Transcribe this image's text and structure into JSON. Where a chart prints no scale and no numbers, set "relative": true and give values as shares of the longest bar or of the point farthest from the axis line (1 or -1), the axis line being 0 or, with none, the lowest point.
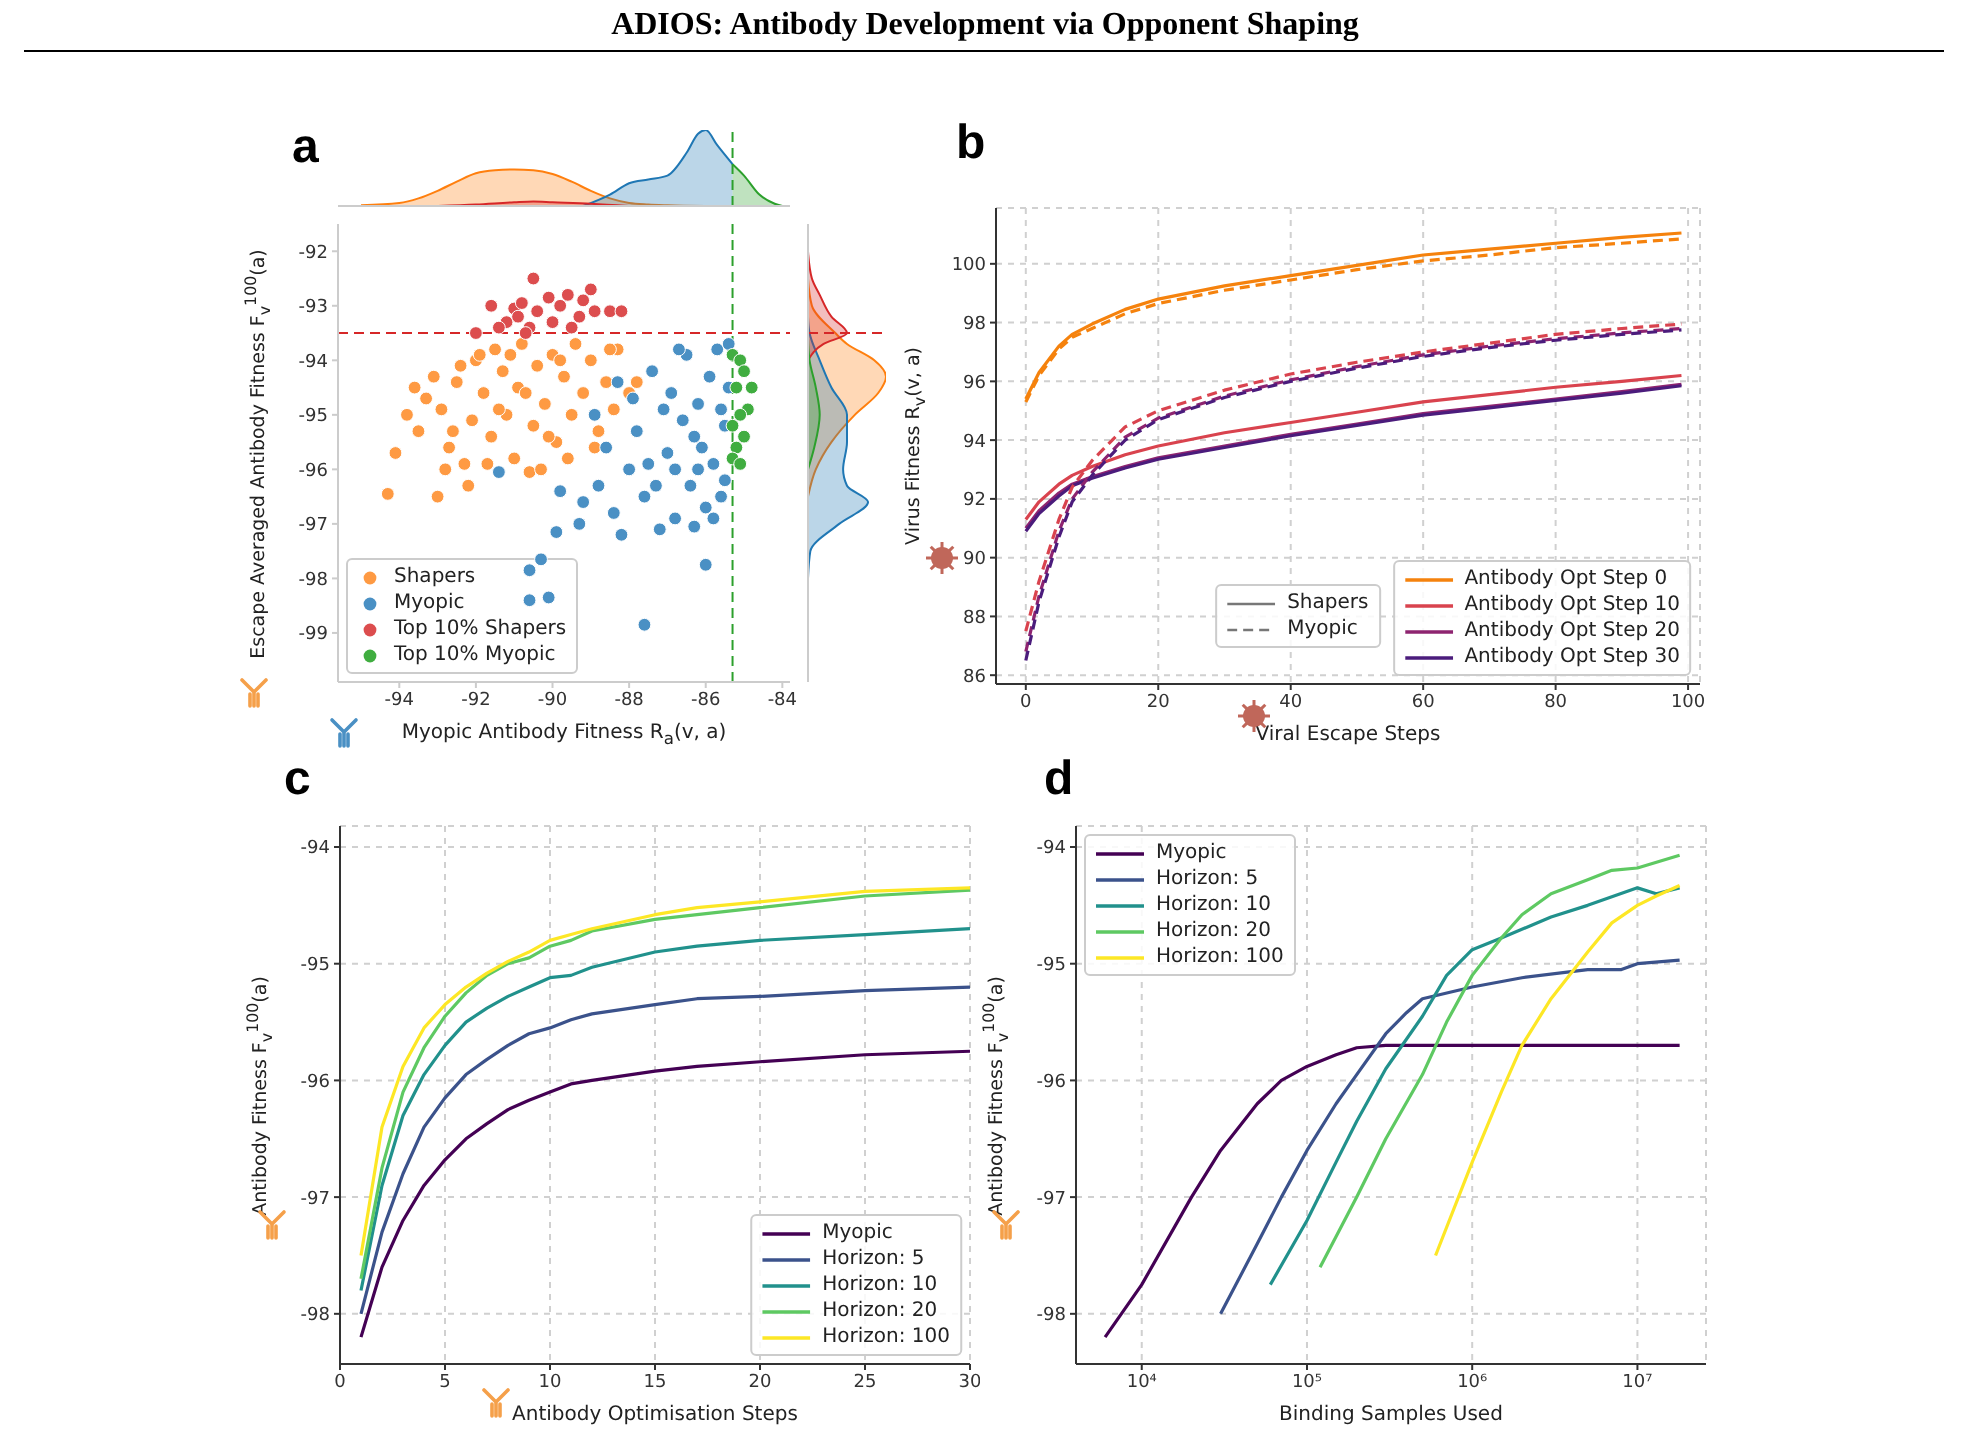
{
  "chart_data": [
    {
      "type": "scatter",
      "title": "a",
      "annotations": [
        "ADIOS: Antibody Development via Opponent Shaping"
      ],
      "xlabel": "Myopic Antibody Fitness R$_{a}$(v, a)",
      "ylabel": "Escape Averaged Antibody Fitness F$_{v}$$^{100}$(a)",
      "xlim": [
        -95.6,
        -83.8
      ],
      "xticks": [
        -94,
        -92,
        -90,
        -88,
        -86,
        -84
      ],
      "ylim": [
        -99.9,
        -91.5
      ],
      "yticks": [
        -99,
        -98,
        -97,
        -96,
        -95,
        -94,
        -93,
        -92
      ],
      "marker": "circle",
      "legend": "bottom left",
      "ref_lines": [
        {
          "axis": "y",
          "value": -93.5,
          "color": "#d62728",
          "line_style": "dashed"
        },
        {
          "axis": "x",
          "value": -85.3,
          "color": "#2ca02c",
          "line_style": "dashed"
        }
      ],
      "series": [
        {
          "name": "Shapers",
          "color": "#fe9a43",
          "x": [
            -94.3,
            -93.0,
            -92.2,
            -94.1,
            -93.8,
            -93.5,
            -93.1,
            -92.9,
            -92.7,
            -92.5,
            -92.3,
            -92.1,
            -92.0,
            -91.8,
            -91.6,
            -91.5,
            -91.3,
            -91.2,
            -91.0,
            -90.9,
            -90.8,
            -90.6,
            -90.5,
            -90.4,
            -90.2,
            -90.0,
            -89.9,
            -89.7,
            -89.5,
            -89.4,
            -89.2,
            -89.0,
            -88.8,
            -88.6,
            -88.4,
            -88.3,
            -88.0,
            -87.8,
            -88.5,
            -91.9,
            -92.6,
            -93.3,
            -91.4,
            -90.7,
            -89.8,
            -91.1,
            -92.4,
            -90.1,
            -92.8,
            -91.7,
            -89.6,
            -90.3,
            -93.6,
            -88.9
          ],
          "values": [
            -96.45,
            -96.5,
            -96.3,
            -95.7,
            -95.0,
            -95.3,
            -94.3,
            -94.9,
            -95.6,
            -94.4,
            -95.9,
            -95.1,
            -94.0,
            -94.6,
            -95.4,
            -93.8,
            -94.2,
            -95.0,
            -95.8,
            -94.5,
            -93.7,
            -96.05,
            -95.2,
            -94.1,
            -94.8,
            -93.9,
            -95.5,
            -94.3,
            -95.0,
            -93.7,
            -94.6,
            -94.0,
            -95.3,
            -94.4,
            -94.9,
            -93.8,
            -94.6,
            -94.4,
            -93.8,
            -93.9,
            -95.3,
            -94.7,
            -94.9,
            -94.6,
            -94.0,
            -93.9,
            -94.1,
            -95.4,
            -96.0,
            -95.9,
            -95.8,
            -96.0,
            -94.5,
            -95.6
          ]
        },
        {
          "name": "Myopic",
          "color": "#4a90c4",
          "x": [
            -87.6,
            -90.1,
            -90.6,
            -90.6,
            -90.3,
            -89.9,
            -89.3,
            -86.0,
            -91.4,
            -88.2,
            -89.8,
            -89.2,
            -88.8,
            -88.4,
            -88.0,
            -87.8,
            -87.6,
            -87.4,
            -87.2,
            -87.0,
            -86.9,
            -86.8,
            -86.6,
            -86.5,
            -86.4,
            -86.3,
            -86.2,
            -86.1,
            -86.0,
            -85.9,
            -85.8,
            -85.7,
            -85.6,
            -85.5,
            -85.4,
            -85.4,
            -87.5,
            -87.1,
            -86.7,
            -88.6,
            -87.9,
            -86.3,
            -85.6,
            -88.9,
            -86.8,
            -85.8,
            -87.3,
            -86.2,
            -85.5,
            -88.3
          ],
          "values": [
            -98.85,
            -98.35,
            -98.4,
            -97.85,
            -97.65,
            -97.15,
            -97.0,
            -97.75,
            -96.05,
            -97.2,
            -96.4,
            -96.6,
            -96.3,
            -96.8,
            -96.0,
            -95.3,
            -96.5,
            -94.2,
            -97.1,
            -95.7,
            -94.6,
            -96.9,
            -95.1,
            -93.9,
            -96.3,
            -97.05,
            -94.8,
            -95.6,
            -96.7,
            -94.3,
            -95.9,
            -93.8,
            -96.5,
            -95.2,
            -94.5,
            -93.7,
            -95.9,
            -94.9,
            -93.8,
            -95.6,
            -94.7,
            -95.4,
            -94.9,
            -95.0,
            -96.0,
            -96.9,
            -96.3,
            -96.0,
            -96.2,
            -94.4
          ]
        },
        {
          "name": "Top 10% Shapers",
          "color": "#dc4d4e",
          "x": [
            -92.0,
            -91.6,
            -91.2,
            -91.0,
            -90.9,
            -90.8,
            -90.6,
            -90.5,
            -90.4,
            -90.1,
            -90.0,
            -89.8,
            -89.6,
            -89.5,
            -89.3,
            -89.2,
            -89.0,
            -88.9,
            -88.5,
            -88.2,
            -90.7,
            -91.4
          ],
          "values": [
            -93.5,
            -93.0,
            -93.3,
            -93.05,
            -93.2,
            -92.95,
            -93.4,
            -92.5,
            -93.1,
            -92.85,
            -93.3,
            -93.0,
            -92.8,
            -93.4,
            -93.2,
            -92.9,
            -92.7,
            -93.1,
            -93.1,
            -93.1,
            -93.5,
            -93.4
          ]
        },
        {
          "name": "Top 10% Myopic",
          "color": "#40ad40",
          "x": [
            -85.3,
            -85.1,
            -85.0,
            -84.8,
            -85.2,
            -84.9,
            -85.1,
            -85.3,
            -85.0,
            -85.2,
            -85.3,
            -85.1
          ],
          "values": [
            -93.9,
            -94.0,
            -94.2,
            -94.5,
            -94.5,
            -94.9,
            -95.0,
            -95.2,
            -95.4,
            -95.6,
            -95.8,
            -95.9
          ]
        }
      ]
    },
    {
      "type": "area",
      "relative": true,
      "tick_labels": false,
      "xlim": [
        -95.6,
        -83.8
      ],
      "ref_lines": [
        {
          "axis": "x",
          "value": -85.3,
          "color": "#2ca02c",
          "line_style": "dashed"
        }
      ],
      "series": [
        {
          "color": "#ff7f0e",
          "x": [
            -95,
            -94,
            -93.5,
            -93,
            -92.5,
            -92,
            -91.5,
            -91,
            -90.5,
            -90,
            -89.5,
            -89,
            -88.5,
            -88,
            -87.5,
            -87,
            -86
          ],
          "values": [
            0.01,
            0.04,
            0.1,
            0.2,
            0.32,
            0.43,
            0.47,
            0.48,
            0.47,
            0.42,
            0.32,
            0.2,
            0.1,
            0.04,
            0.02,
            0.01,
            0
          ]
        },
        {
          "color": "#1f77b4",
          "x": [
            -89.2,
            -88.5,
            -88,
            -87.5,
            -87,
            -86.5,
            -86.2,
            -86,
            -85.7,
            -85.3
          ],
          "values": [
            0,
            0.15,
            0.3,
            0.35,
            0.4,
            0.7,
            0.95,
            1,
            0.8,
            0.55
          ]
        },
        {
          "color": "#d62728",
          "x": [
            -93,
            -92,
            -91,
            -90.5,
            -90,
            -89,
            -88
          ],
          "values": [
            0,
            0.02,
            0.05,
            0.06,
            0.05,
            0.03,
            0
          ]
        },
        {
          "color": "#2ca02c",
          "x": [
            -85.3,
            -85,
            -84.6,
            -84.2,
            -84
          ],
          "values": [
            0.55,
            0.4,
            0.15,
            0.03,
            0
          ]
        }
      ]
    },
    {
      "type": "area",
      "relative": true,
      "orientation": "horizontal",
      "tick_labels": false,
      "ylim": [
        -99.9,
        -91.5
      ],
      "ref_lines": [
        {
          "axis": "y",
          "value": -93.5,
          "color": "#d62728",
          "line_style": "dashed"
        }
      ],
      "series": [
        {
          "color": "#ff7f0e",
          "x": [
            -96.5,
            -96,
            -95.5,
            -95,
            -94.6,
            -94.3,
            -94,
            -93.7,
            -93.5,
            -93,
            -92.5
          ],
          "values": [
            0,
            0.1,
            0.3,
            0.6,
            0.9,
            1,
            0.85,
            0.5,
            0.35,
            0.05,
            0
          ]
        },
        {
          "color": "#1f77b4",
          "x": [
            -98,
            -97.5,
            -97,
            -96.6,
            -96.3,
            -96,
            -95.5,
            -95,
            -94.5,
            -94,
            -93.5,
            -93.2
          ],
          "values": [
            0,
            0.03,
            0.4,
            0.77,
            0.5,
            0.45,
            0.5,
            0.5,
            0.3,
            0.15,
            0.02,
            0
          ]
        },
        {
          "color": "#d62728",
          "x": [
            -94,
            -93.7,
            -93.5,
            -93.2,
            -92.8,
            -92.5,
            -92
          ],
          "values": [
            0,
            0.2,
            0.5,
            0.3,
            0.15,
            0.05,
            0
          ]
        },
        {
          "color": "#2ca02c",
          "x": [
            -96,
            -95.6,
            -95,
            -94.5,
            -94,
            -93.6
          ],
          "values": [
            0,
            0.08,
            0.15,
            0.1,
            0.02,
            0
          ]
        }
      ]
    },
    {
      "type": "line",
      "title": "b",
      "xlabel": "Viral Escape Steps",
      "ylabel": "Virus Fitness R$_{v}$(v, a)",
      "xlim": [
        -4.5,
        101.8
      ],
      "xticks": [
        0,
        20,
        40,
        60,
        80,
        100
      ],
      "ylim": [
        85.7,
        101.9
      ],
      "yticks": [
        86,
        88,
        90,
        92,
        94,
        96,
        98,
        100
      ],
      "grid": true,
      "legend": "bottom right",
      "annotations": [
        "Shapers",
        "Myopic"
      ],
      "x": [
        0,
        2,
        5,
        7,
        10,
        15,
        20,
        30,
        40,
        50,
        60,
        70,
        80,
        90,
        99
      ],
      "series": [
        {
          "name": "Antibody Opt Step 0",
          "color": "#f5820d",
          "line_style": "solid",
          "values": [
            95.4,
            96.3,
            97.2,
            97.6,
            97.95,
            98.45,
            98.8,
            99.25,
            99.6,
            99.95,
            100.3,
            100.5,
            100.7,
            100.9,
            101.05
          ]
        },
        {
          "name": "Antibody Opt Step 10",
          "color": "#d9434e",
          "line_style": "solid",
          "values": [
            91.3,
            91.9,
            92.5,
            92.8,
            93.1,
            93.5,
            93.8,
            94.25,
            94.6,
            94.95,
            95.3,
            95.55,
            95.8,
            96.0,
            96.2
          ]
        },
        {
          "name": "Antibody Opt Step 20",
          "color": "#8e2470",
          "line_style": "solid",
          "values": [
            91.0,
            91.6,
            92.2,
            92.5,
            92.75,
            93.1,
            93.4,
            93.8,
            94.2,
            94.55,
            94.9,
            95.15,
            95.4,
            95.65,
            95.9
          ]
        },
        {
          "name": "Antibody Opt Step 30",
          "color": "#4b1c7c",
          "line_style": "solid",
          "values": [
            90.9,
            91.5,
            92.1,
            92.45,
            92.7,
            93.05,
            93.35,
            93.75,
            94.15,
            94.5,
            94.85,
            95.1,
            95.35,
            95.6,
            95.85
          ]
        },
        {
          "color": "#f5820d",
          "line_style": "dashed",
          "values": [
            95.3,
            96.2,
            97.1,
            97.5,
            97.8,
            98.3,
            98.65,
            99.1,
            99.45,
            99.8,
            100.1,
            100.3,
            100.55,
            100.7,
            100.85
          ]
        },
        {
          "color": "#d9434e",
          "line_style": "dashed",
          "values": [
            87.5,
            89.2,
            91.3,
            92.4,
            93.3,
            94.45,
            95.0,
            95.7,
            96.25,
            96.65,
            97.0,
            97.3,
            97.6,
            97.8,
            97.95
          ]
        },
        {
          "color": "#8e2470",
          "line_style": "dashed",
          "values": [
            86.8,
            88.7,
            90.9,
            92.0,
            92.9,
            94.1,
            94.75,
            95.5,
            96.05,
            96.5,
            96.9,
            97.2,
            97.45,
            97.65,
            97.8
          ]
        },
        {
          "color": "#4b1c7c",
          "line_style": "dashed",
          "values": [
            86.5,
            88.5,
            90.7,
            91.9,
            92.8,
            94.0,
            94.7,
            95.45,
            96.0,
            96.45,
            96.85,
            97.15,
            97.4,
            97.6,
            97.75
          ]
        }
      ]
    },
    {
      "type": "line",
      "title": "c",
      "xlabel": "Antibody Optimisation Steps",
      "ylabel": "Antibody Fitness F$_{v}$$^{100}$(a)",
      "xlim": [
        0,
        30
      ],
      "xticks": [
        0,
        5,
        10,
        15,
        20,
        25,
        30
      ],
      "ylim": [
        -98.43,
        -93.82
      ],
      "yticks": [
        -98,
        -97,
        -96,
        -95,
        -94
      ],
      "grid": true,
      "legend": "bottom right",
      "x": [
        1,
        2,
        3,
        4,
        5,
        6,
        7,
        8,
        9,
        10,
        11,
        12,
        15,
        17,
        20,
        25,
        30
      ],
      "series": [
        {
          "name": "Myopic",
          "color": "#440154",
          "values": [
            -98.2,
            -97.6,
            -97.2,
            -96.9,
            -96.68,
            -96.5,
            -96.37,
            -96.25,
            -96.17,
            -96.1,
            -96.03,
            -96.0,
            -95.92,
            -95.88,
            -95.84,
            -95.78,
            -95.75
          ]
        },
        {
          "name": "Horizon: 5",
          "color": "#3b528b",
          "values": [
            -98.0,
            -97.3,
            -96.8,
            -96.4,
            -96.15,
            -95.95,
            -95.82,
            -95.7,
            -95.6,
            -95.55,
            -95.48,
            -95.43,
            -95.35,
            -95.3,
            -95.28,
            -95.23,
            -95.2
          ]
        },
        {
          "name": "Horizon: 10",
          "color": "#21918c",
          "values": [
            -97.8,
            -96.9,
            -96.3,
            -95.95,
            -95.7,
            -95.5,
            -95.38,
            -95.28,
            -95.2,
            -95.12,
            -95.1,
            -95.03,
            -94.9,
            -94.85,
            -94.8,
            -94.75,
            -94.7
          ]
        },
        {
          "name": "Horizon: 20",
          "color": "#5ec962",
          "values": [
            -97.7,
            -96.75,
            -96.1,
            -95.72,
            -95.45,
            -95.25,
            -95.1,
            -95.0,
            -94.95,
            -94.85,
            -94.8,
            -94.72,
            -94.62,
            -94.58,
            -94.52,
            -94.42,
            -94.37
          ]
        },
        {
          "name": "Horizon: 100",
          "color": "#fde725",
          "values": [
            -97.5,
            -96.4,
            -95.88,
            -95.55,
            -95.35,
            -95.2,
            -95.08,
            -94.98,
            -94.9,
            -94.8,
            -94.75,
            -94.7,
            -94.58,
            -94.52,
            -94.47,
            -94.38,
            -94.35
          ]
        }
      ]
    },
    {
      "type": "line",
      "title": "d",
      "xlabel": "Binding Samples Used",
      "ylabel": "Antibody Fitness F$_{v}$$^{100}$(a)",
      "log": "x",
      "xlim": [
        4000,
        26000000
      ],
      "xticks": [
        {
          "value": 10000,
          "label": "10⁴"
        },
        {
          "value": 100000,
          "label": "10⁵"
        },
        {
          "value": 1000000,
          "label": "10⁶"
        },
        {
          "value": 10000000,
          "label": "10⁷"
        }
      ],
      "ylim": [
        -98.43,
        -93.82
      ],
      "yticks": [
        -98,
        -97,
        -96,
        -95,
        -94
      ],
      "grid": true,
      "legend": "top left",
      "series": [
        {
          "name": "Myopic",
          "color": "#440154",
          "x": [
            6000,
            10000,
            20000,
            30000,
            50000,
            70000,
            100000,
            150000,
            200000,
            300000,
            1000000,
            10000000,
            18000000
          ],
          "values": [
            -98.2,
            -97.75,
            -97.0,
            -96.6,
            -96.2,
            -96.0,
            -95.88,
            -95.78,
            -95.72,
            -95.7,
            -95.7,
            -95.7,
            -95.7
          ]
        },
        {
          "name": "Horizon: 5",
          "color": "#3b528b",
          "x": [
            30000,
            50000,
            70000,
            100000,
            150000,
            200000,
            300000,
            400000,
            500000,
            1000000,
            2000000,
            5000000,
            8000000,
            10000000,
            18000000
          ],
          "values": [
            -98.0,
            -97.4,
            -97.0,
            -96.6,
            -96.2,
            -95.95,
            -95.6,
            -95.42,
            -95.3,
            -95.2,
            -95.12,
            -95.05,
            -95.05,
            -95.0,
            -94.97
          ]
        },
        {
          "name": "Horizon: 10",
          "color": "#21918c",
          "x": [
            60000,
            100000,
            150000,
            200000,
            300000,
            500000,
            700000,
            1000000,
            1500000,
            3000000,
            5000000,
            10000000,
            13000000,
            18000000
          ],
          "values": [
            -97.75,
            -97.2,
            -96.7,
            -96.35,
            -95.9,
            -95.45,
            -95.1,
            -94.88,
            -94.78,
            -94.6,
            -94.5,
            -94.35,
            -94.4,
            -94.35
          ]
        },
        {
          "name": "Horizon: 20",
          "color": "#5ec962",
          "x": [
            120000,
            200000,
            300000,
            500000,
            700000,
            1000000,
            1500000,
            2000000,
            3000000,
            5000000,
            7000000,
            10000000,
            18000000
          ],
          "values": [
            -97.6,
            -97.0,
            -96.5,
            -95.95,
            -95.5,
            -95.1,
            -94.78,
            -94.58,
            -94.4,
            -94.28,
            -94.2,
            -94.18,
            -94.07
          ]
        },
        {
          "name": "Horizon: 100",
          "color": "#fde725",
          "x": [
            600000,
            1000000,
            1500000,
            2000000,
            3000000,
            5000000,
            7000000,
            10000000,
            13000000,
            18000000
          ],
          "values": [
            -97.5,
            -96.7,
            -96.1,
            -95.7,
            -95.3,
            -94.9,
            -94.65,
            -94.5,
            -94.42,
            -94.33
          ]
        }
      ]
    }
  ]
}
